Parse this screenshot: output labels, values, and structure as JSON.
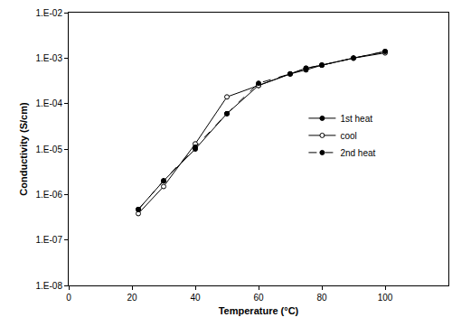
{
  "chart_data": {
    "type": "line",
    "x_label": "Temperature (°C)",
    "y_label": "Conductivity (S/cm)",
    "log": "y",
    "grid": false,
    "legend": "right",
    "xlim": [
      0,
      120
    ],
    "xticks": [
      0,
      20,
      40,
      60,
      80,
      100
    ],
    "ylim": [
      1e-08,
      0.01
    ],
    "yticks": [
      {
        "value": 1e-08,
        "label": "1.E-08"
      },
      {
        "value": 1e-07,
        "label": "1.E-07"
      },
      {
        "value": 1e-06,
        "label": "1.E-06"
      },
      {
        "value": 1e-05,
        "label": "1.E-05"
      },
      {
        "value": 0.0001,
        "label": "1.E-04"
      },
      {
        "value": 0.001,
        "label": "1.E-03"
      },
      {
        "value": 0.01,
        "label": "1.E-02"
      }
    ],
    "x": [
      22,
      30,
      40,
      50,
      60,
      70,
      75,
      80,
      90,
      100
    ],
    "series": [
      {
        "name": "1st heat",
        "color": "#000000",
        "marker": "circle",
        "line_style": "solid",
        "values": [
          4.7e-07,
          2e-06,
          1e-05,
          6e-05,
          0.00025,
          0.00045,
          0.00055,
          0.0007,
          0.001,
          0.0014
        ]
      },
      {
        "name": "cool",
        "color": "#000000",
        "marker": "circle-open",
        "line_style": "solid",
        "values": [
          3.8e-07,
          1.5e-06,
          1.3e-05,
          0.00014,
          0.00025,
          0.00045,
          0.0006,
          0.0007,
          0.001,
          0.0013
        ]
      },
      {
        "name": "2nd heat",
        "color": "#000000",
        "marker": "circle",
        "line_style": "dashed",
        "values": [
          4.7e-07,
          2e-06,
          1.1e-05,
          6e-05,
          0.00028,
          0.00045,
          0.0006,
          0.0007,
          0.001,
          0.0014
        ]
      }
    ]
  }
}
